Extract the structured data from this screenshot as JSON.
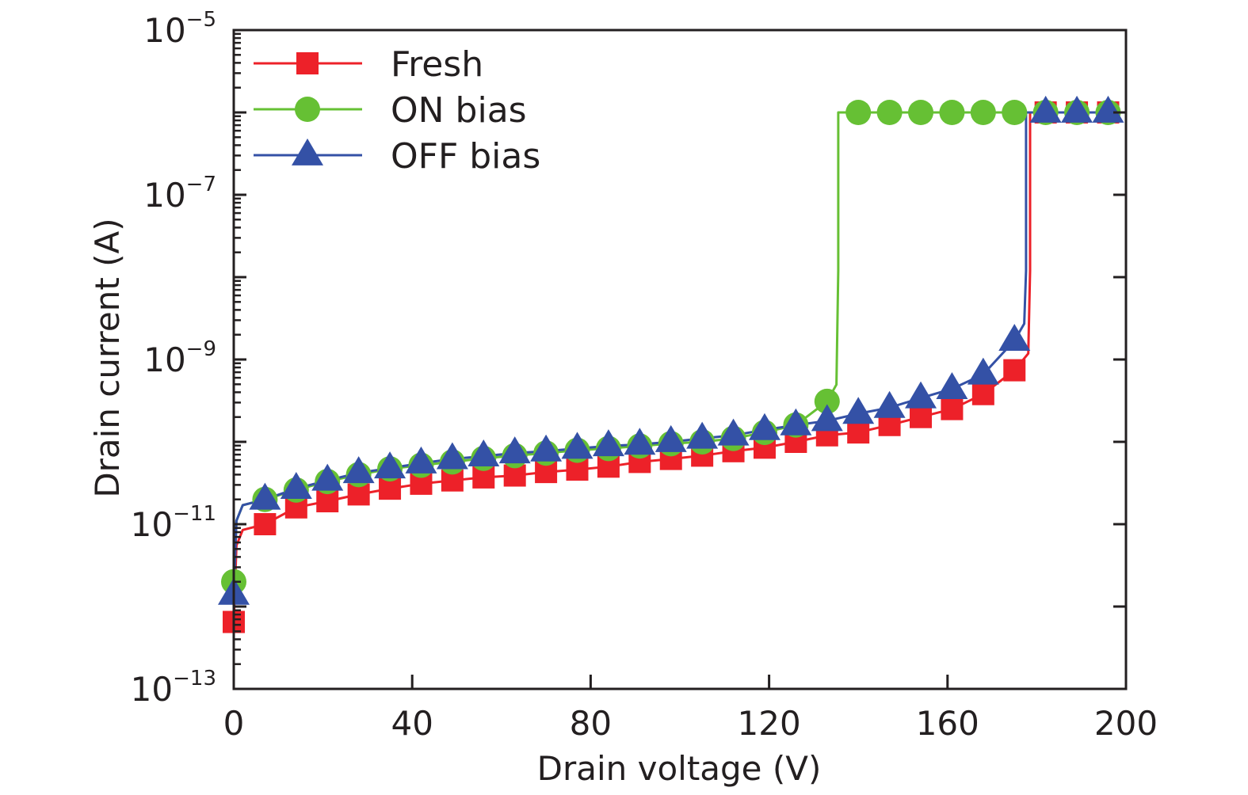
{
  "chart_data": {
    "type": "line",
    "title": "",
    "xlabel": "Drain voltage (V)",
    "ylabel": "Drain current (A)",
    "xlim": [
      0,
      200
    ],
    "ylim": [
      1e-13,
      1e-05
    ],
    "yscale": "log",
    "grid": false,
    "legend_position": "top-left",
    "x_ticks": [
      0,
      40,
      80,
      120,
      160,
      200
    ],
    "x_tick_labels": [
      "0",
      "40",
      "80",
      "120",
      "160",
      "200"
    ],
    "y_ticks": [
      1e-13,
      1e-11,
      1e-09,
      1e-07,
      1e-05
    ],
    "y_tick_labels": [
      {
        "base": "10",
        "exp": "−13"
      },
      {
        "base": "10",
        "exp": "−11"
      },
      {
        "base": "10",
        "exp": "−9"
      },
      {
        "base": "10",
        "exp": "−7"
      },
      {
        "base": "10",
        "exp": "−5"
      }
    ],
    "x": [
      0,
      7,
      14,
      21,
      28,
      35,
      42,
      49,
      56,
      63,
      70,
      77,
      84,
      91,
      98,
      105,
      112,
      119,
      126,
      133,
      140,
      147,
      154,
      161,
      168,
      175,
      182,
      189,
      196
    ],
    "series": [
      {
        "name": "Fresh",
        "color": "#ed2129",
        "marker": "square",
        "breakdown_voltage": 178.5,
        "values": [
          6.5e-13,
          1e-11,
          1.6e-11,
          1.9e-11,
          2.3e-11,
          2.7e-11,
          3.1e-11,
          3.4e-11,
          3.7e-11,
          3.9e-11,
          4.3e-11,
          4.6e-11,
          5e-11,
          5.7e-11,
          6.2e-11,
          6.8e-11,
          7.7e-11,
          8.5e-11,
          1e-10,
          1.2e-10,
          1.3e-10,
          1.6e-10,
          2e-10,
          2.5e-10,
          3.8e-10,
          7.4e-10,
          1e-06,
          1e-06,
          1e-06
        ]
      },
      {
        "name": "ON bias",
        "color": "#66c034",
        "marker": "circle",
        "breakdown_voltage": 135.5,
        "values": [
          2e-12,
          2e-11,
          2.6e-11,
          3.3e-11,
          4e-11,
          4.7e-11,
          5.2e-11,
          5.7e-11,
          6.3e-11,
          6.8e-11,
          7.3e-11,
          7.9e-11,
          8.3e-11,
          8.9e-11,
          9.5e-11,
          1e-10,
          1.1e-10,
          1.3e-10,
          1.6e-10,
          3.1e-10,
          1e-06,
          1e-06,
          1e-06,
          1e-06,
          1e-06,
          1e-06,
          1e-06,
          1e-06,
          1e-06
        ]
      },
      {
        "name": "OFF bias",
        "color": "#3451a6",
        "marker": "triangle",
        "breakdown_voltage": 177.6,
        "values": [
          1.4e-12,
          2e-11,
          2.7e-11,
          3.4e-11,
          4.2e-11,
          4.8e-11,
          5.5e-11,
          6.2e-11,
          6.7e-11,
          7.3e-11,
          7.7e-11,
          8.3e-11,
          8.9e-11,
          9.3e-11,
          1e-10,
          1.1e-10,
          1.2e-10,
          1.4e-10,
          1.6e-10,
          1.8e-10,
          2.2e-10,
          2.6e-10,
          3.4e-10,
          4.4e-10,
          6.6e-10,
          1.7e-09,
          1e-06,
          1e-06,
          1e-06
        ]
      }
    ]
  }
}
